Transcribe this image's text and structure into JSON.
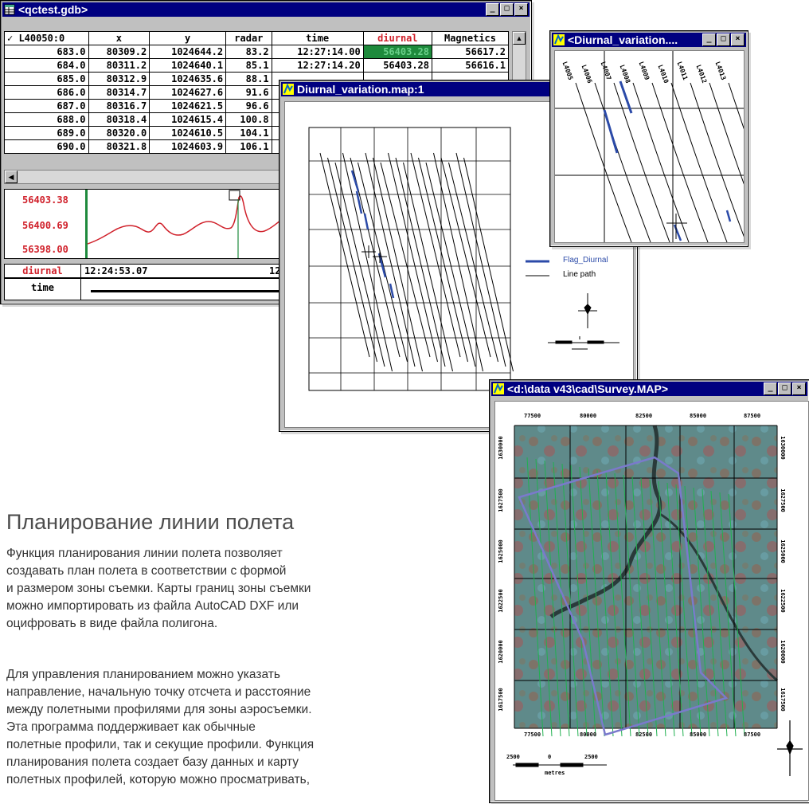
{
  "db_window": {
    "title": "<qctest.gdb>",
    "columns": [
      "✓ L40050:0",
      "x",
      "y",
      "radar",
      "time",
      "diurnal",
      "Magnetics"
    ],
    "rows": [
      [
        "683.0",
        "80309.2",
        "1024644.2",
        "83.2",
        "12:27:14.00",
        "56403.28",
        "56617.2"
      ],
      [
        "684.0",
        "80311.2",
        "1024640.1",
        "85.1",
        "12:27:14.20",
        "56403.28",
        "56616.1"
      ],
      [
        "685.0",
        "80312.9",
        "1024635.6",
        "88.1",
        "",
        "",
        ""
      ],
      [
        "686.0",
        "80314.7",
        "1024627.6",
        "91.6",
        "",
        "",
        ""
      ],
      [
        "687.0",
        "80316.7",
        "1024621.5",
        "96.6",
        "",
        "",
        ""
      ],
      [
        "688.0",
        "80318.4",
        "1024615.4",
        "100.8",
        "",
        "",
        ""
      ],
      [
        "689.0",
        "80320.0",
        "1024610.5",
        "104.1",
        "",
        "",
        ""
      ],
      [
        "690.0",
        "80321.8",
        "1024603.9",
        "106.1",
        "",
        "",
        ""
      ]
    ],
    "profile": {
      "labels": [
        "56403.38",
        "56400.69",
        "56398.00"
      ],
      "channel": "diurnal",
      "channel_value": "12:24:53.07",
      "channel_value_cut": "12",
      "x_channel": "time"
    }
  },
  "map1": {
    "title": "Diurnal_variation.map:1",
    "legend": [
      {
        "label": "Flag_Diurnal",
        "color": "#2b4aa8"
      },
      {
        "label": "Line path",
        "color": "#000000"
      }
    ]
  },
  "map2": {
    "title": "<Diurnal_variation....",
    "line_labels": [
      "L4005",
      "L4006",
      "L4007",
      "L4008",
      "L4009",
      "L4010",
      "L4011",
      "L4012",
      "L4013"
    ]
  },
  "map3": {
    "title": "<d:\\data v43\\cad\\Survey.MAP>",
    "top_ticks": [
      "77500",
      "80000",
      "82500",
      "85000",
      "87500"
    ],
    "left_ticks": [
      "1630000",
      "1627500",
      "1625000",
      "1622500",
      "1620000",
      "1617500"
    ],
    "right_ticks": [
      "1630000",
      "1627500",
      "1625000",
      "1622500",
      "1620000",
      "1617500"
    ],
    "bottom_ticks": [
      "77500",
      "80000",
      "82500",
      "85000",
      "87500"
    ],
    "scale_labels": [
      "2500",
      "0",
      "2500"
    ],
    "scale_unit": "metres"
  },
  "article": {
    "heading": "Планирование линии полета",
    "para1": [
      "Функция планирования линии полета позволяет",
      "создавать план полета в соответствии с формой",
      "и размером зоны съемки. Карты границ зоны съемки",
      "можно импортировать из файла AutoCAD DXF или",
      "оцифровать в виде файла полигона."
    ],
    "para2": [
      "Для управления планированием можно указать",
      "направление, начальную точку отсчета и расстояние",
      "между полетными профилями для зоны аэросъемки.",
      "Эта программа поддерживает как обычные",
      "полетные профили, так и секущие профили. Функция",
      "планирования полета создает базу данных и карту",
      "полетных профилей, которую можно просматривать,"
    ]
  },
  "colors": {
    "title_active": "#000080",
    "diurnal_red": "#d0202a",
    "highlight_green": "#1e8a3c",
    "flag_blue": "#2b4aa8",
    "survey_green": "#20b050",
    "boundary": "#7a7acc"
  }
}
